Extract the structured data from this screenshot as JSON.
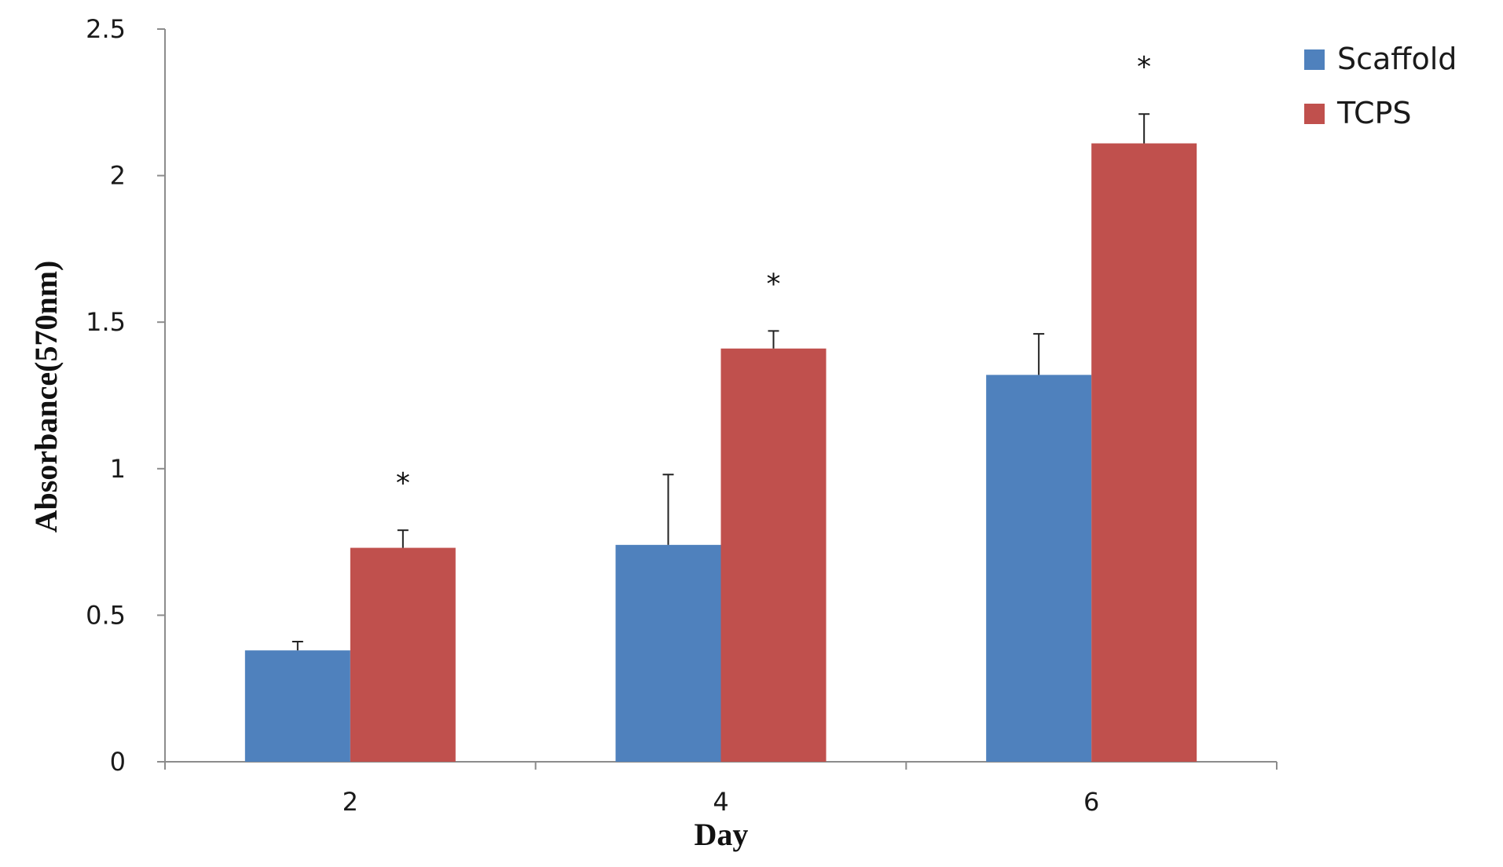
{
  "chart_data": {
    "type": "bar",
    "categories": [
      "2",
      "4",
      "6"
    ],
    "series": [
      {
        "name": "Scaffold",
        "color": "#4F81BD",
        "values": [
          0.38,
          0.74,
          1.32
        ],
        "errors": [
          0.03,
          0.24,
          0.14
        ]
      },
      {
        "name": "TCPS",
        "color": "#C0504D",
        "values": [
          0.73,
          1.41,
          2.11
        ],
        "errors": [
          0.06,
          0.06,
          0.1
        ]
      }
    ],
    "significance": [
      "*",
      "*",
      "*"
    ],
    "xlabel": "Day",
    "ylabel": "Absorbance(570nm)",
    "ylim": [
      0,
      2.5
    ],
    "yticks": [
      "0",
      "0.5",
      "1",
      "1.5",
      "2",
      "2.5"
    ],
    "grid": false,
    "legend_position": "top-right"
  }
}
